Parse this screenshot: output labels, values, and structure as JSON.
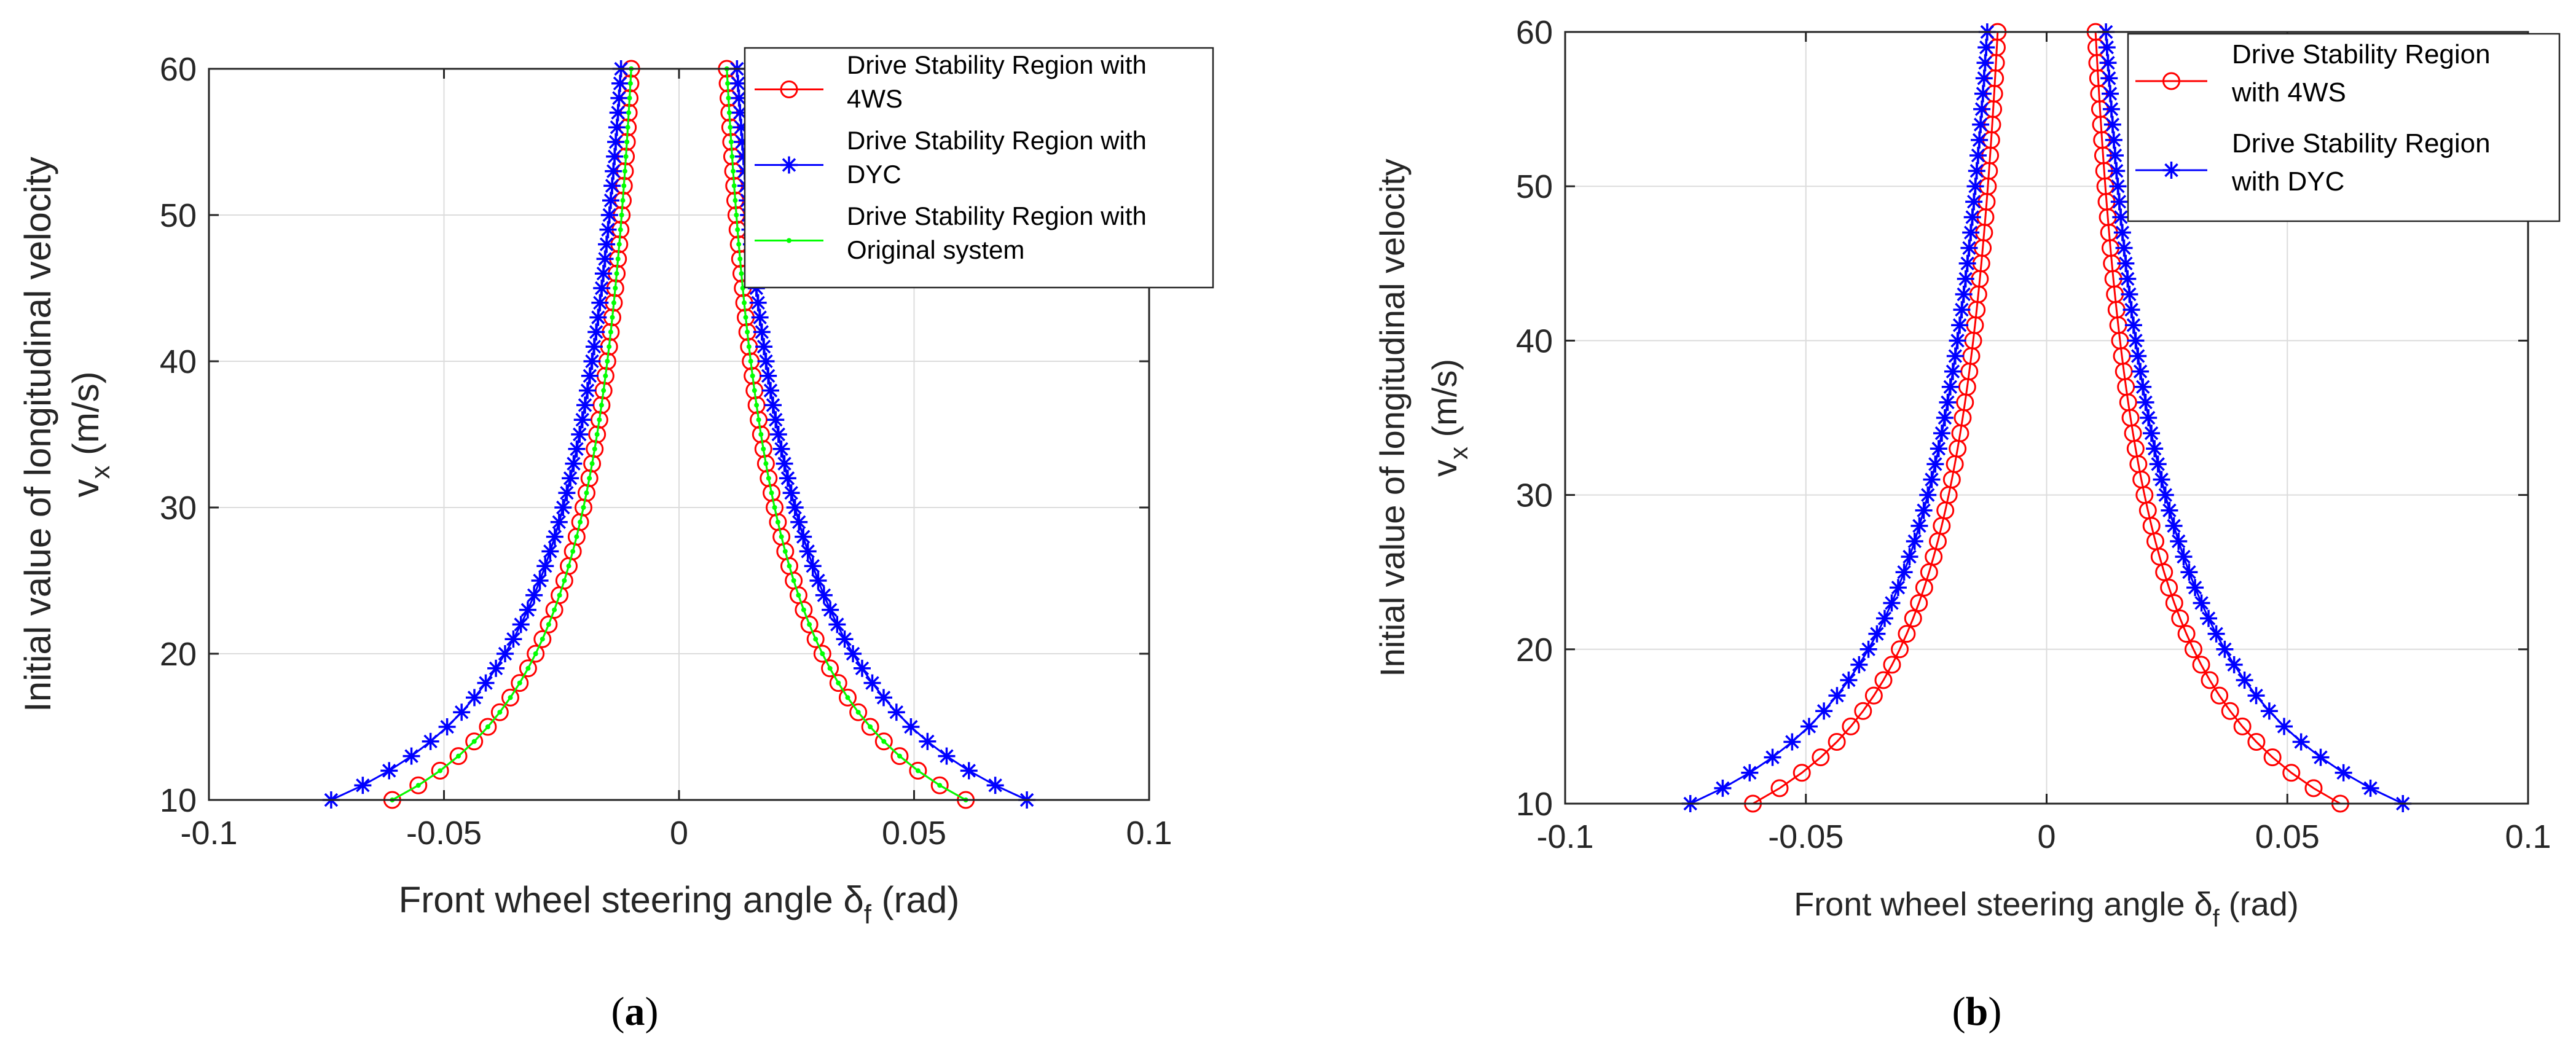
{
  "panels": [
    {
      "label_open": "(",
      "label_letter": "a",
      "label_close": ")"
    },
    {
      "label_open": "(",
      "label_letter": "b",
      "label_close": ")"
    }
  ],
  "colors": {
    "s4ws": "#ff0000",
    "dyc": "#0000ff",
    "orig": "#00ff00",
    "grid": "#dcdcdc",
    "axis": "#262626"
  },
  "chart_data": [
    {
      "type": "line",
      "title": "",
      "xlabel_main": "Front wheel steering angle δ",
      "xlabel_sub": "f",
      "xlabel_unit": " (rad)",
      "ylabel_line1": "Initial value of longitudinal velocity",
      "ylabel_line2_main": "v",
      "ylabel_line2_sub": "x",
      "ylabel_line2_unit": " (m/s)",
      "xlim": [
        -0.1,
        0.1
      ],
      "ylim": [
        10,
        60
      ],
      "xticks": [
        "-0.1",
        "-0.05",
        "0",
        "0.05",
        "0.1"
      ],
      "yticks": [
        "10",
        "20",
        "30",
        "40",
        "50",
        "60"
      ],
      "grid": true,
      "legend_position": "top-right",
      "legend": [
        {
          "line1": "Drive Stability Region with",
          "line2": "4WS"
        },
        {
          "line1": "Drive Stability Region with",
          "line2": "DYC"
        },
        {
          "line1": "Drive Stability Region with",
          "line2": "Original system"
        }
      ],
      "y": [
        10,
        11,
        12,
        13,
        14,
        15,
        16,
        17,
        18,
        19,
        20,
        21,
        22,
        23,
        24,
        25,
        26,
        27,
        28,
        29,
        30,
        31,
        32,
        33,
        34,
        35,
        36,
        37,
        38,
        39,
        40,
        41,
        42,
        43,
        44,
        45,
        46,
        47,
        48,
        49,
        50,
        51,
        52,
        53,
        54,
        55,
        56,
        57,
        58,
        59,
        60
      ],
      "series": [
        {
          "key": "s4ws",
          "marker": "circle",
          "k": 0.61
        },
        {
          "key": "dyc",
          "marker": "asterisk",
          "k": 0.74
        },
        {
          "key": "orig",
          "marker": "dot",
          "k": 0.61
        }
      ]
    },
    {
      "type": "line",
      "title": "",
      "xlabel_main": "Front wheel steering angle δ",
      "xlabel_sub": "f",
      "xlabel_unit": " (rad)",
      "ylabel_line1": "Initial value of longitudinal velocity",
      "ylabel_line2_main": "v",
      "ylabel_line2_sub": "x",
      "ylabel_line2_unit": " (m/s)",
      "xlim": [
        -0.1,
        0.1
      ],
      "ylim": [
        10,
        60
      ],
      "xticks": [
        "-0.1",
        "-0.05",
        "0",
        "0.05",
        "0.1"
      ],
      "yticks": [
        "10",
        "20",
        "30",
        "40",
        "50",
        "60"
      ],
      "grid": true,
      "legend_position": "top-right",
      "legend": [
        {
          "line1": "Drive Stability Region",
          "line2": "with 4WS"
        },
        {
          "line1": "Drive Stability Region",
          "line2": "with DYC"
        }
      ],
      "y": [
        10,
        11,
        12,
        13,
        14,
        15,
        16,
        17,
        18,
        19,
        20,
        21,
        22,
        23,
        24,
        25,
        26,
        27,
        28,
        29,
        30,
        31,
        32,
        33,
        34,
        35,
        36,
        37,
        38,
        39,
        40,
        41,
        42,
        43,
        44,
        45,
        46,
        47,
        48,
        49,
        50,
        51,
        52,
        53,
        54,
        55,
        56,
        57,
        58,
        59,
        60
      ],
      "series": [
        {
          "key": "s4ws",
          "marker": "circle",
          "k": 0.61
        },
        {
          "key": "dyc",
          "marker": "asterisk",
          "k": 0.74
        }
      ]
    }
  ]
}
